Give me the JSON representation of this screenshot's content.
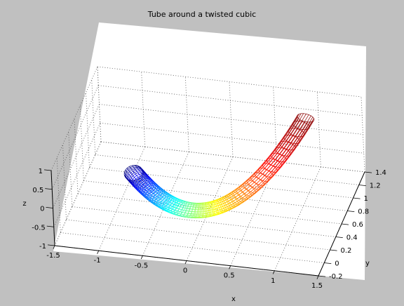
{
  "figure": {
    "background": "#c0c0c0",
    "axes_background": "#ffffff"
  },
  "chart_data": {
    "type": "surface-mesh",
    "title": "Tube around a twisted cubic",
    "xlabel": "x",
    "ylabel": "y",
    "zlabel": "z",
    "xlim": [
      -1.5,
      1.5
    ],
    "ylim": [
      -0.2,
      1.4
    ],
    "zlim": [
      -1,
      1
    ],
    "x_ticks": [
      "-1.5",
      "-1",
      "-0.5",
      "0",
      "0.5",
      "1",
      "1.5"
    ],
    "y_ticks": [
      "-0.2",
      "0",
      "0.2",
      "0.4",
      "0.6",
      "0.8",
      "1",
      "1.2",
      "1.4"
    ],
    "z_ticks": [
      "1",
      "0.5",
      "0",
      "-0.5",
      "-1"
    ],
    "grid": true,
    "colormap": "jet",
    "curve": "twisted cubic (t, t^2, t^3), t from -1 to 1",
    "tube_radius": 0.1,
    "view": {
      "azimuth": -18,
      "elevation": 42
    }
  }
}
